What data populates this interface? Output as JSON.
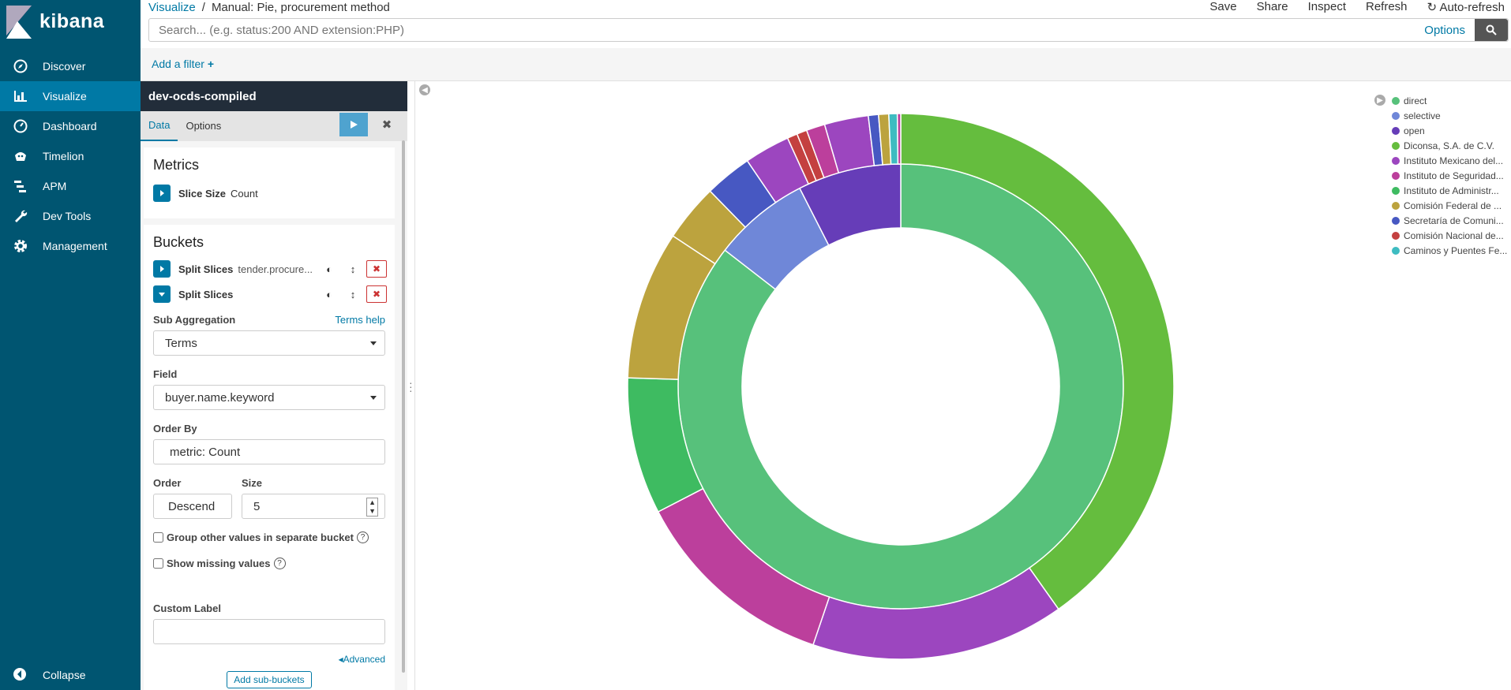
{
  "nav": {
    "brand": "kibana",
    "items": [
      {
        "label": "Discover",
        "icon": "compass-icon"
      },
      {
        "label": "Visualize",
        "icon": "bar-chart-icon"
      },
      {
        "label": "Dashboard",
        "icon": "dashboard-icon"
      },
      {
        "label": "Timelion",
        "icon": "timelion-icon"
      },
      {
        "label": "APM",
        "icon": "apm-icon"
      },
      {
        "label": "Dev Tools",
        "icon": "wrench-icon"
      },
      {
        "label": "Management",
        "icon": "gear-icon"
      }
    ],
    "collapse": "Collapse"
  },
  "breadcrumb": {
    "root": "Visualize",
    "sep": "/",
    "current": "Manual: Pie, procurement method"
  },
  "top_actions": [
    "Save",
    "Share",
    "Inspect",
    "Refresh",
    "Auto-refresh"
  ],
  "query": {
    "placeholder": "Search... (e.g. status:200 AND extension:PHP)",
    "options": "Options"
  },
  "filter": {
    "add": "Add a filter"
  },
  "editor": {
    "index": "dev-ocds-compiled",
    "tabs": [
      "Data",
      "Options"
    ],
    "metrics_title": "Metrics",
    "metric": {
      "label": "Slice Size",
      "value": "Count"
    },
    "buckets_title": "Buckets",
    "bucket1": {
      "label": "Split Slices",
      "value": "tender.procure..."
    },
    "bucket2": {
      "label": "Split Slices"
    },
    "sub_agg_label": "Sub Aggregation",
    "terms_help": "Terms help",
    "sub_agg_value": "Terms",
    "field_label": "Field",
    "field_value": "buyer.name.keyword",
    "order_by_label": "Order By",
    "order_by_value": "metric: Count",
    "order_label": "Order",
    "order_value": "Descend",
    "size_label": "Size",
    "size_value": "5",
    "group_other": "Group other values in separate bucket",
    "show_missing": "Show missing values",
    "custom_label": "Custom Label",
    "advanced": "Advanced",
    "add_sub": "Add sub-buckets"
  },
  "legend": [
    {
      "label": "direct",
      "color": "#57c17b"
    },
    {
      "label": "selective",
      "color": "#6f87d8"
    },
    {
      "label": "open",
      "color": "#663db8"
    },
    {
      "label": "Diconsa, S.A. de C.V.",
      "color": "#65bd3e"
    },
    {
      "label": "Instituto Mexicano del...",
      "color": "#9c46bf"
    },
    {
      "label": "Instituto de Seguridad...",
      "color": "#bc3f9c"
    },
    {
      "label": "Instituto de Administr...",
      "color": "#3ebb61"
    },
    {
      "label": "Comisión Federal de ...",
      "color": "#bca33e"
    },
    {
      "label": "Secretaría de Comuni...",
      "color": "#4758c2"
    },
    {
      "label": "Comisión Nacional de...",
      "color": "#c44040"
    },
    {
      "label": "Caminos y Puentes Fe...",
      "color": "#3ebcc1"
    }
  ],
  "chart_data": {
    "type": "pie",
    "inner": [
      {
        "label": "direct",
        "value": 85.5,
        "color": "#57c17b"
      },
      {
        "label": "selective",
        "value": 7.0,
        "color": "#6f87d8"
      },
      {
        "label": "open",
        "value": 7.5,
        "color": "#663db8"
      }
    ],
    "outer": [
      {
        "label": "Diconsa, S.A. de C.V.",
        "value": 40.2,
        "color": "#65bd3e"
      },
      {
        "label": "Instituto Mexicano del...",
        "value": 15.0,
        "color": "#9c46bf"
      },
      {
        "label": "Instituto de Seguridad...",
        "value": 12.2,
        "color": "#bc3f9c"
      },
      {
        "label": "Instituto de Administr...",
        "value": 8.1,
        "color": "#3ebb61"
      },
      {
        "label": "Comisión Federal de ...",
        "value": 8.8,
        "color": "#bca33e"
      },
      {
        "label": "Comisión Federal de ...",
        "value": 3.4,
        "color": "#bca33e"
      },
      {
        "label": "Secretaría de Comuni...",
        "value": 2.8,
        "color": "#4758c2"
      },
      {
        "label": "Instituto Mexicano del...",
        "value": 2.7,
        "color": "#9c46bf"
      },
      {
        "label": "Comisión Nacional de...",
        "value": 0.6,
        "color": "#c44040"
      },
      {
        "label": "Comisión Nacional de...",
        "value": 0.6,
        "color": "#c44040"
      },
      {
        "label": "Instituto Mexicano del...",
        "value": 1.1,
        "color": "#bc3f9c"
      },
      {
        "label": "Instituto Mexicano del...",
        "value": 2.6,
        "color": "#9c46bf"
      },
      {
        "label": "Secretaría de Comuni...",
        "value": 0.6,
        "color": "#4758c2"
      },
      {
        "label": "Comisión Federal de ...",
        "value": 0.6,
        "color": "#bca33e"
      },
      {
        "label": "Caminos y Puentes Fe...",
        "value": 0.5,
        "color": "#3ebcc1"
      },
      {
        "label": "Instituto de Seguridad...",
        "value": 0.2,
        "color": "#bc3f9c"
      }
    ]
  }
}
